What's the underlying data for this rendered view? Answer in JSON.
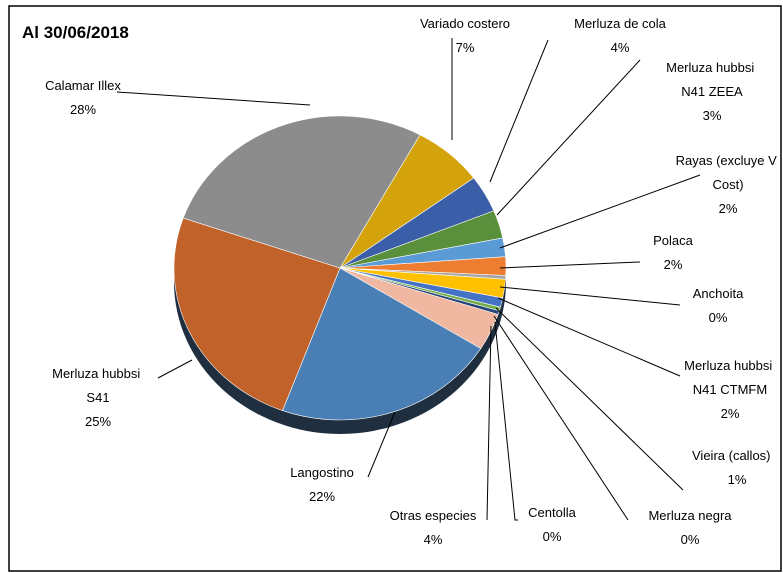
{
  "chart_data": {
    "type": "pie",
    "title": "Al 30/06/2018",
    "categories": [
      "Variado costero",
      "Merluza de cola",
      "Merluza hubbsi N41 ZEEA",
      "Rayas (excluye V Cost)",
      "Polaca",
      "Anchoita",
      "Merluza hubbsi N41 CTMFM",
      "Vieira (callos)",
      "Merluza negra",
      "Centolla",
      "Otras especies",
      "Langostino",
      "Merluza hubbsi S41",
      "Calamar Illex"
    ],
    "values": [
      7,
      4,
      3,
      2,
      2,
      0.4,
      2,
      1,
      0.4,
      0.4,
      4,
      22,
      25,
      28
    ],
    "value_labels": [
      "7%",
      "4%",
      "3%",
      "2%",
      "2%",
      "0%",
      "2%",
      "1%",
      "0%",
      "0%",
      "4%",
      "22%",
      "25%",
      "28%"
    ],
    "colors": [
      "#d4a20a",
      "#3a5ea8",
      "#5a8f3c",
      "#5b9bd5",
      "#ed7d31",
      "#a5a5a5",
      "#ffc000",
      "#4472c4",
      "#70ad47",
      "#264478",
      "#f0b8a0",
      "#4a7fb5",
      "#c0622a",
      "#8c8c8c"
    ]
  }
}
